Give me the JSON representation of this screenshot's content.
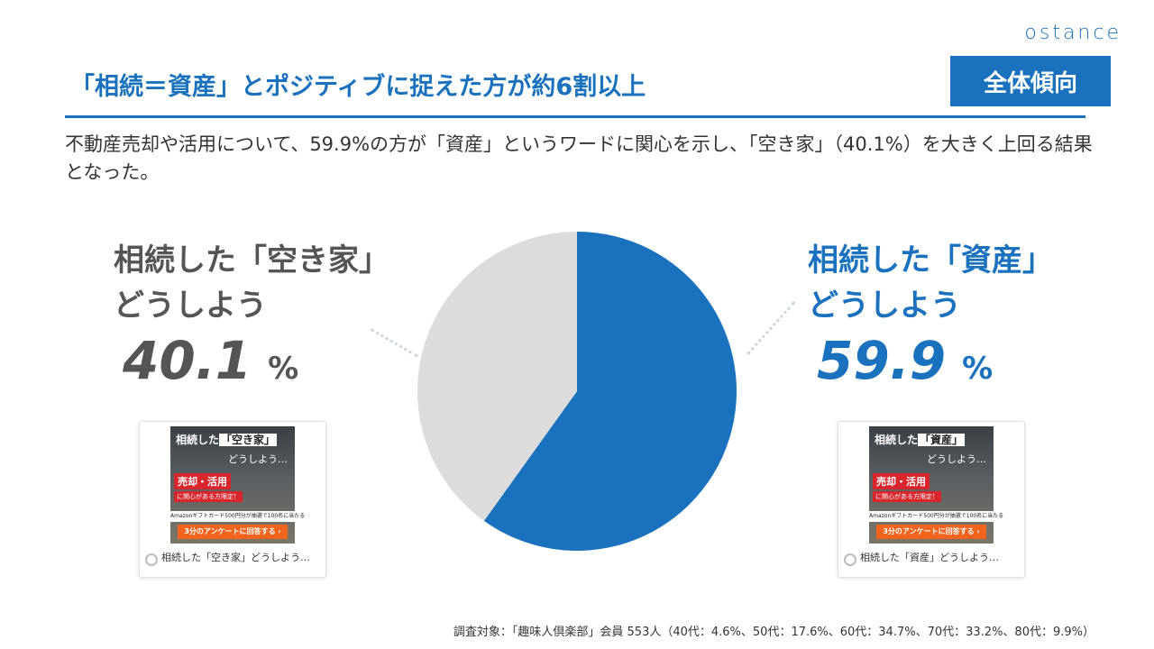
{
  "brand": {
    "logo_text": "ostance",
    "accent": "#1a72bf"
  },
  "header": {
    "title": "「相続＝資産」とポジティブに捉えた方が約6割以上",
    "badge": "全体傾向"
  },
  "description": "不動産売却や活用について、59.9%の方が「資産」というワードに関心を示し、「空き家」（40.1%）を大きく上回る結果となった。",
  "labels": {
    "left": {
      "line1": "相続した「空き家」",
      "line2": "どうしよう",
      "value": "40.1",
      "unit": "%"
    },
    "right": {
      "line1": "相続した「資産」",
      "line2": "どうしよう",
      "value": "59.9",
      "unit": "%"
    }
  },
  "chart_data": {
    "type": "pie",
    "slices": [
      {
        "label": "相続した「資産」どうしよう",
        "value": 59.9,
        "color": "#1a72bf"
      },
      {
        "label": "相続した「空き家」どうしよう",
        "value": 40.1,
        "color": "#dcdcdc"
      }
    ]
  },
  "cards": {
    "left": {
      "title_pre": "相続した",
      "title_hl": "「空き家」",
      "subtitle": "どうしよう…",
      "tag": "売却・活用",
      "tag2": "に関心がある方限定！",
      "gift": "Amazonギフトカード500円分が抽選で100名に当たる",
      "cta": "3分のアンケートに回答する ›",
      "caption": "相続した「空き家」どうしよう…"
    },
    "right": {
      "title_pre": "相続した",
      "title_hl": "「資産」",
      "subtitle": "どうしよう…",
      "tag": "売却・活用",
      "tag2": "に関心がある方限定！",
      "gift": "Amazonギフトカード500円分が抽選で100名に当たる",
      "cta": "3分のアンケートに回答する ›",
      "caption": "相続した「資産」どうしよう…"
    }
  },
  "footer": "調査対象：「趣味人倶楽部」会員 553人（40代：4.6%、50代：17.6%、60代：34.7%、70代：33.2%、80代：9.9%）"
}
